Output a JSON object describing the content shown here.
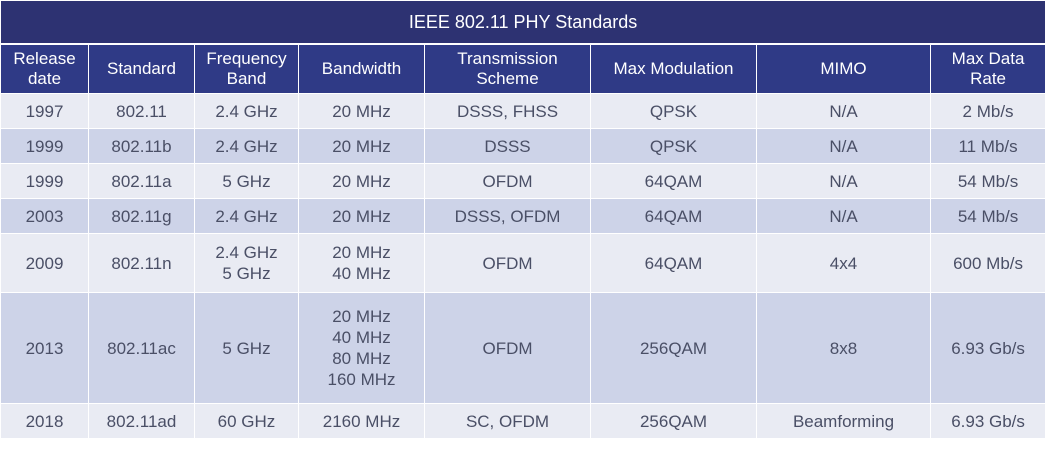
{
  "table": {
    "title": "IEEE 802.11 PHY Standards",
    "headers": [
      [
        "Release",
        "date"
      ],
      [
        "Standard"
      ],
      [
        "Frequency",
        "Band"
      ],
      [
        "Bandwidth"
      ],
      [
        "Transmission",
        "Scheme"
      ],
      [
        "Max Modulation"
      ],
      [
        "MIMO"
      ],
      [
        "Max Data",
        "Rate"
      ]
    ],
    "rows": [
      {
        "date": "1997",
        "standard": "802.11",
        "band": [
          "2.4 GHz"
        ],
        "bandwidth": [
          "20 MHz"
        ],
        "scheme": "DSSS, FHSS",
        "modulation": "QPSK",
        "mimo": "N/A",
        "rate": "2 Mb/s"
      },
      {
        "date": "1999",
        "standard": "802.11b",
        "band": [
          "2.4 GHz"
        ],
        "bandwidth": [
          "20 MHz"
        ],
        "scheme": "DSSS",
        "modulation": "QPSK",
        "mimo": "N/A",
        "rate": "11 Mb/s"
      },
      {
        "date": "1999",
        "standard": "802.11a",
        "band": [
          "5 GHz"
        ],
        "bandwidth": [
          "20 MHz"
        ],
        "scheme": "OFDM",
        "modulation": "64QAM",
        "mimo": "N/A",
        "rate": "54 Mb/s"
      },
      {
        "date": "2003",
        "standard": "802.11g",
        "band": [
          "2.4 GHz"
        ],
        "bandwidth": [
          "20 MHz"
        ],
        "scheme": "DSSS, OFDM",
        "modulation": "64QAM",
        "mimo": "N/A",
        "rate": "54 Mb/s"
      },
      {
        "date": "2009",
        "standard": "802.11n",
        "band": [
          "2.4 GHz",
          "5 GHz"
        ],
        "bandwidth": [
          "20 MHz",
          "40 MHz"
        ],
        "scheme": "OFDM",
        "modulation": "64QAM",
        "mimo": "4x4",
        "rate": "600 Mb/s"
      },
      {
        "date": "2013",
        "standard": "802.11ac",
        "band": [
          "5 GHz"
        ],
        "bandwidth": [
          "20 MHz",
          "40 MHz",
          "80 MHz",
          "160 MHz"
        ],
        "scheme": "OFDM",
        "modulation": "256QAM",
        "mimo": "8x8",
        "rate": "6.93 Gb/s"
      },
      {
        "date": "2018",
        "standard": "802.11ad",
        "band": [
          "60 GHz"
        ],
        "bandwidth": [
          "2160 MHz"
        ],
        "scheme": "SC, OFDM",
        "modulation": "256QAM",
        "mimo": "Beamforming",
        "rate": "6.93 Gb/s"
      }
    ]
  },
  "colors": {
    "title_bg": "#2d3272",
    "header_bg": "#2f3a86",
    "row_light": "#e9ebf3",
    "row_dark": "#cdd3e8",
    "text": "#4a4f66"
  }
}
